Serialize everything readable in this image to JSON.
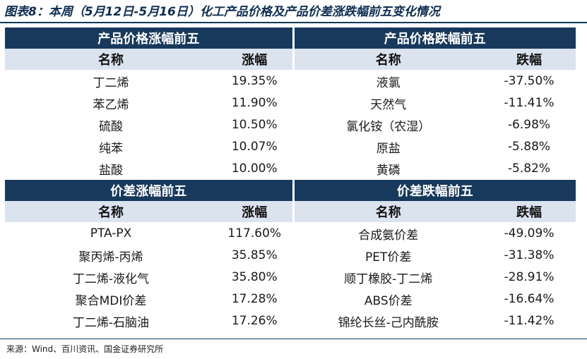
{
  "title": "图表8：本周（5月12日-5月16日）化工产品价格及产品价差涨跌幅前五变化情况",
  "sections": [
    {
      "left_title": "产品价格涨幅前五",
      "right_title": "产品价格跌幅前五",
      "left_headers": [
        "名称",
        "涨幅"
      ],
      "right_headers": [
        "名称",
        "跌幅"
      ],
      "rows": [
        {
          "ln": "丁二烯",
          "lv": "19.35%",
          "rn": "液氯",
          "rv": "-37.50%"
        },
        {
          "ln": "苯乙烯",
          "lv": "11.90%",
          "rn": "天然气",
          "rv": "-11.41%"
        },
        {
          "ln": "硫酸",
          "lv": "10.50%",
          "rn": "氯化铵（农湿）",
          "rv": "-6.98%"
        },
        {
          "ln": "纯苯",
          "lv": "10.07%",
          "rn": "原盐",
          "rv": "-5.88%"
        },
        {
          "ln": "盐酸",
          "lv": "10.00%",
          "rn": "黄磷",
          "rv": "-5.82%"
        }
      ]
    },
    {
      "left_title": "价差涨幅前五",
      "right_title": "价差跌幅前五",
      "left_headers": [
        "名称",
        "涨幅"
      ],
      "right_headers": [
        "名称",
        "跌幅"
      ],
      "rows": [
        {
          "ln": "PTA-PX",
          "lv": "117.60%",
          "rn": "合成氨价差",
          "rv": "-49.09%"
        },
        {
          "ln": "聚丙烯-丙烯",
          "lv": "35.85%",
          "rn": "PET价差",
          "rv": "-31.38%"
        },
        {
          "ln": "丁二烯-液化气",
          "lv": "35.80%",
          "rn": "顺丁橡胶-丁二烯",
          "rv": "-28.91%"
        },
        {
          "ln": "聚合MDI价差",
          "lv": "17.28%",
          "rn": "ABS价差",
          "rv": "-16.64%"
        },
        {
          "ln": "丁二烯-石脑油",
          "lv": "17.26%",
          "rn": "锦纶长丝-己内酰胺",
          "rv": "-11.42%"
        }
      ]
    }
  ],
  "source": "来源：Wind、百川资讯、国金证券研究所",
  "colors": {
    "section_header": "#17395c",
    "column_header": "#dbe3ee",
    "title": "#0d2d52"
  }
}
